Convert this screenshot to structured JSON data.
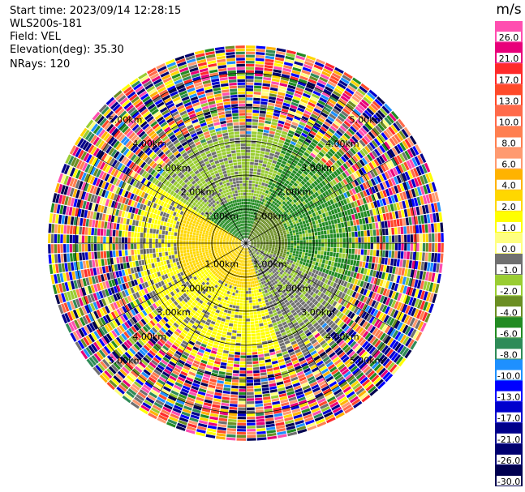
{
  "header": {
    "start_time": "Start time: 2023/09/14 12:28:15",
    "device": "WLS200s-181",
    "field": "Field: VEL",
    "elevation": "Elevation(deg): 35.30",
    "nrays": "NRays: 120"
  },
  "ppi": {
    "range_rings": [
      {
        "label": "1.00km",
        "range_km": 1
      },
      {
        "label": "2.00km",
        "range_km": 2
      },
      {
        "label": "3.00km",
        "range_km": 3
      },
      {
        "label": "4.00km",
        "range_km": 4
      },
      {
        "label": "5.00km",
        "range_km": 5
      }
    ],
    "max_range_km": 5.8,
    "nrays": 120
  },
  "colorbar": {
    "unit": "m/s",
    "ticks": [
      "26.0",
      "21.0",
      "17.0",
      "13.0",
      "10.0",
      "8.0",
      "6.0",
      "4.0",
      "2.0",
      "1.0",
      "0.0",
      "-1.0",
      "-2.0",
      "-4.0",
      "-6.0",
      "-8.0",
      "-10.0",
      "-13.0",
      "-17.0",
      "-21.0",
      "-26.0",
      "-30.0"
    ],
    "colors": [
      "#ff4fb0",
      "#e8007a",
      "#ff2a2a",
      "#ff4a2a",
      "#ff6a4a",
      "#ff7f50",
      "#ff9a70",
      "#ffb300",
      "#ffd700",
      "#ffff00",
      "#ffff80",
      "#707070",
      "#9acd32",
      "#6b8e23",
      "#228b22",
      "#2e8b57",
      "#1e90ff",
      "#0000ff",
      "#0000cd",
      "#00008b",
      "#000070",
      "#000050"
    ]
  }
}
